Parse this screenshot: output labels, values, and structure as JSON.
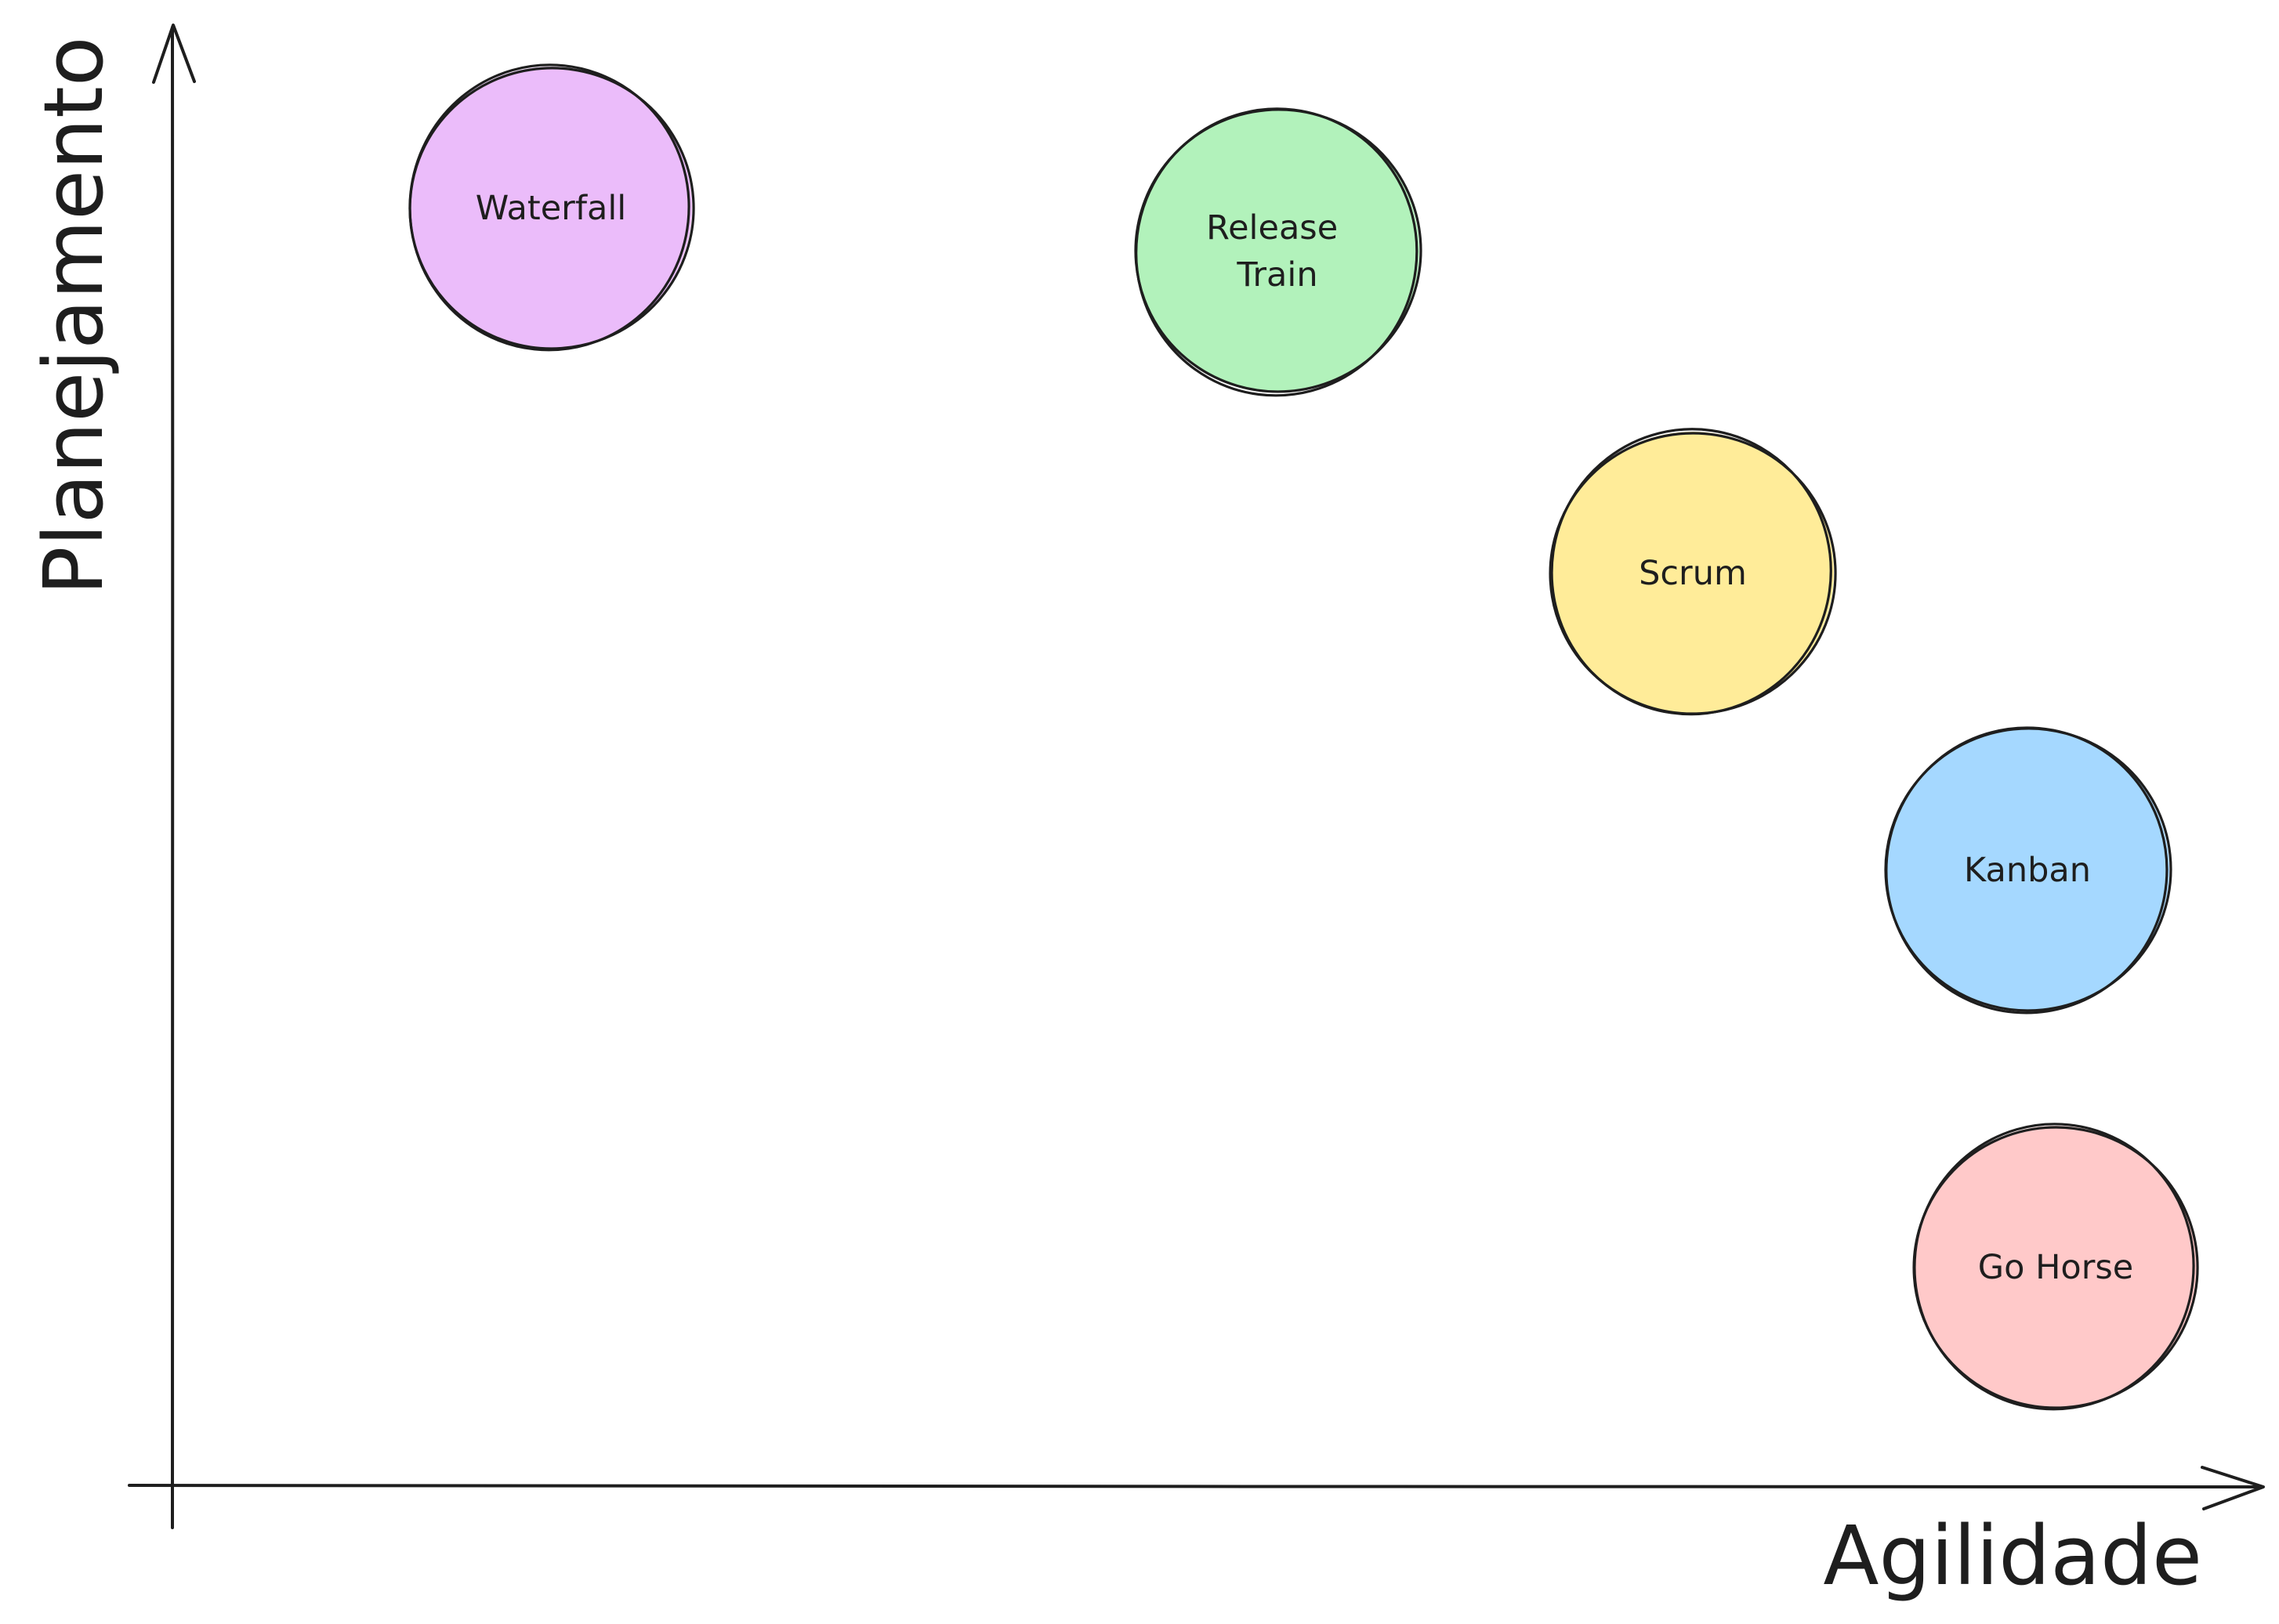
{
  "axes": {
    "x_label": "Agilidade",
    "y_label": "Planejamento"
  },
  "methods": [
    {
      "name": "waterfall",
      "label_lines": [
        "Waterfall"
      ],
      "color": "#ebbcfa",
      "agilidade": 1,
      "planejamento": 5
    },
    {
      "name": "release-train",
      "label_lines": [
        "Release",
        "Train"
      ],
      "color": "#b2f2bb",
      "agilidade": 2.5,
      "planejamento": 4.7
    },
    {
      "name": "scrum",
      "label_lines": [
        "Scrum"
      ],
      "color": "#ffec99",
      "agilidade": 3.5,
      "planejamento": 3.6
    },
    {
      "name": "kanban",
      "label_lines": [
        "Kanban"
      ],
      "color": "#a5d8ff",
      "agilidade": 4.2,
      "planejamento": 2.5
    },
    {
      "name": "go-horse",
      "label_lines": [
        "Go Horse"
      ],
      "color": "#ffc9c9",
      "agilidade": 4.3,
      "planejamento": 1
    }
  ]
}
